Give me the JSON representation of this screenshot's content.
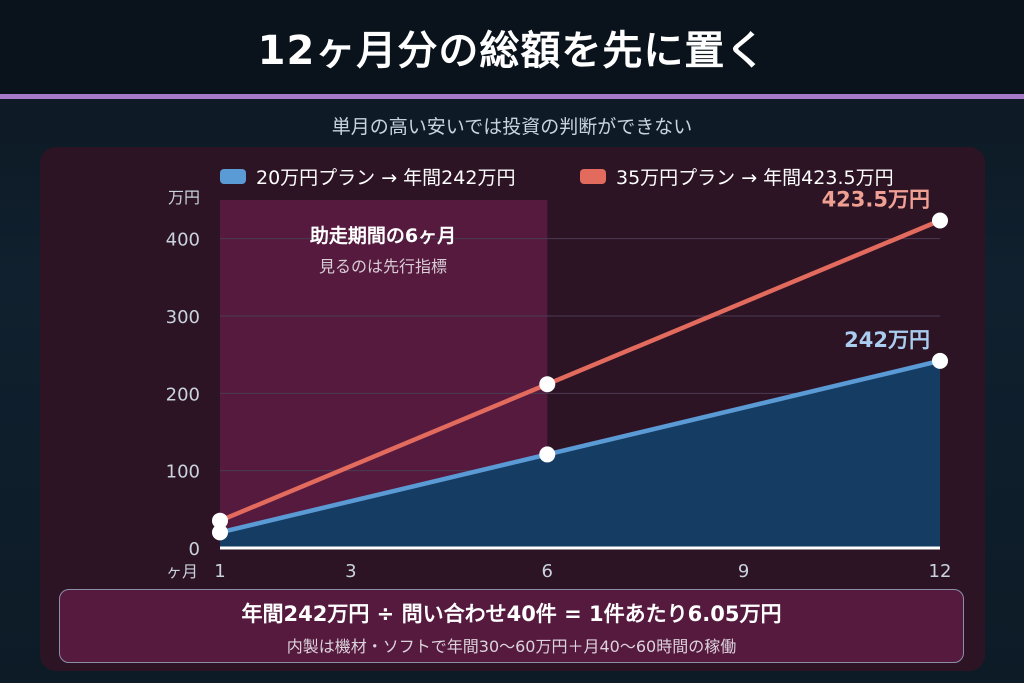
{
  "header": {
    "title": "12ヶ月分の総額を先に置く"
  },
  "subtitle": "単月の高い安いでは投資の判断ができない",
  "legend": [
    {
      "label": "20万円プラン → 年間242万円",
      "color": "#5b9bd5"
    },
    {
      "label": "35万円プラン → 年間423.5万円",
      "color": "#e26b5e"
    }
  ],
  "highlight_box": {
    "title": "助走期間の6ヶ月",
    "subtitle": "見るのは先行指標"
  },
  "summary": {
    "main": "年間242万円 ÷ 問い合わせ40件 = 1件あたり6.05万円",
    "note": "内製は機材・ソフトで年間30〜60万円＋月40〜60時間の稼働"
  },
  "chart_data": {
    "type": "line",
    "x": [
      1,
      6,
      12
    ],
    "x_ticks": [
      1,
      3,
      6,
      9,
      12
    ],
    "x_tick_labels": [
      "1",
      "3",
      "6",
      "9",
      "12"
    ],
    "xlabel": "ヶ月",
    "ylabel": "万円",
    "y_ticks": [
      0,
      100,
      200,
      300,
      400
    ],
    "y_tick_labels": [
      "0",
      "100",
      "200",
      "300",
      "400"
    ],
    "xlim": [
      1,
      12
    ],
    "ylim": [
      0,
      450
    ],
    "grid": true,
    "legend_position": "top",
    "highlight_range": [
      1,
      6
    ],
    "series": [
      {
        "name": "20万円プラン → 年間242万円",
        "values": [
          20.2,
          121,
          242
        ],
        "color": "#5b9bd5",
        "fill": "#153c62",
        "end_label": "242万円",
        "end_label_color": "#a9ccef"
      },
      {
        "name": "35万円プラン → 年間423.5万円",
        "values": [
          35.3,
          211.8,
          423.5
        ],
        "color": "#e26b5e",
        "end_label": "423.5万円",
        "end_label_color": "#f0a093"
      }
    ]
  }
}
